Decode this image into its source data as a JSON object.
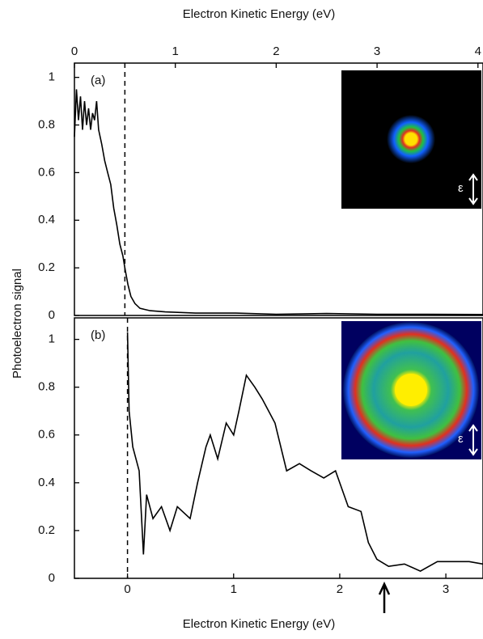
{
  "chart_data": [
    {
      "type": "line",
      "panel_label": "(a)",
      "xlabel": "Electron Kinetic Energy (eV)",
      "ylabel": "Photoelectron signal",
      "inset_label": "ε",
      "xlim": [
        0,
        4.05
      ],
      "xticks": [
        0,
        1,
        2,
        3,
        4
      ],
      "ylim": [
        0,
        1.06
      ],
      "yticks": [
        0,
        0.2,
        0.4,
        0.6,
        0.8,
        1
      ],
      "marker_line": 0.5,
      "color": "#000000",
      "x": [
        0,
        0.02,
        0.04,
        0.06,
        0.08,
        0.1,
        0.12,
        0.14,
        0.16,
        0.18,
        0.2,
        0.22,
        0.24,
        0.27,
        0.3,
        0.33,
        0.36,
        0.39,
        0.42,
        0.45,
        0.48,
        0.5,
        0.53,
        0.56,
        0.6,
        0.65,
        0.75,
        0.9,
        1.2,
        1.6,
        2.0,
        2.5,
        3.0,
        3.5,
        4.05
      ],
      "values": [
        0.75,
        0.95,
        0.82,
        0.92,
        0.78,
        0.9,
        0.8,
        0.87,
        0.78,
        0.85,
        0.82,
        0.9,
        0.78,
        0.72,
        0.65,
        0.6,
        0.55,
        0.45,
        0.38,
        0.3,
        0.25,
        0.2,
        0.13,
        0.08,
        0.05,
        0.03,
        0.02,
        0.015,
        0.01,
        0.01,
        0.005,
        0.008,
        0.005,
        0.005,
        0.004
      ]
    },
    {
      "type": "line",
      "panel_label": "(b)",
      "xlabel": "Electron Kinetic Energy (eV)",
      "inset_label": "ε",
      "xlim": [
        -0.5,
        3.35
      ],
      "xticks": [
        0,
        1,
        2,
        3
      ],
      "ylim": [
        0,
        1.09
      ],
      "yticks": [
        0,
        0.2,
        0.4,
        0.6,
        0.8,
        1
      ],
      "marker_line": 0,
      "color": "#000000",
      "x": [
        0,
        0.015,
        0.05,
        0.11,
        0.15,
        0.18,
        0.24,
        0.32,
        0.4,
        0.47,
        0.59,
        0.66,
        0.74,
        0.78,
        0.85,
        0.93,
        1.0,
        1.05,
        1.12,
        1.2,
        1.27,
        1.39,
        1.5,
        1.62,
        1.73,
        1.85,
        1.96,
        2.08,
        2.2,
        2.27,
        2.35,
        2.46,
        2.61,
        2.76,
        2.92,
        3.07,
        3.22,
        3.35
      ],
      "values": [
        1.03,
        0.7,
        0.55,
        0.45,
        0.1,
        0.35,
        0.25,
        0.3,
        0.2,
        0.3,
        0.25,
        0.4,
        0.55,
        0.6,
        0.5,
        0.65,
        0.6,
        0.7,
        0.85,
        0.8,
        0.75,
        0.65,
        0.45,
        0.48,
        0.45,
        0.42,
        0.45,
        0.3,
        0.28,
        0.15,
        0.08,
        0.05,
        0.06,
        0.03,
        0.07,
        0.07,
        0.07,
        0.06
      ]
    }
  ]
}
